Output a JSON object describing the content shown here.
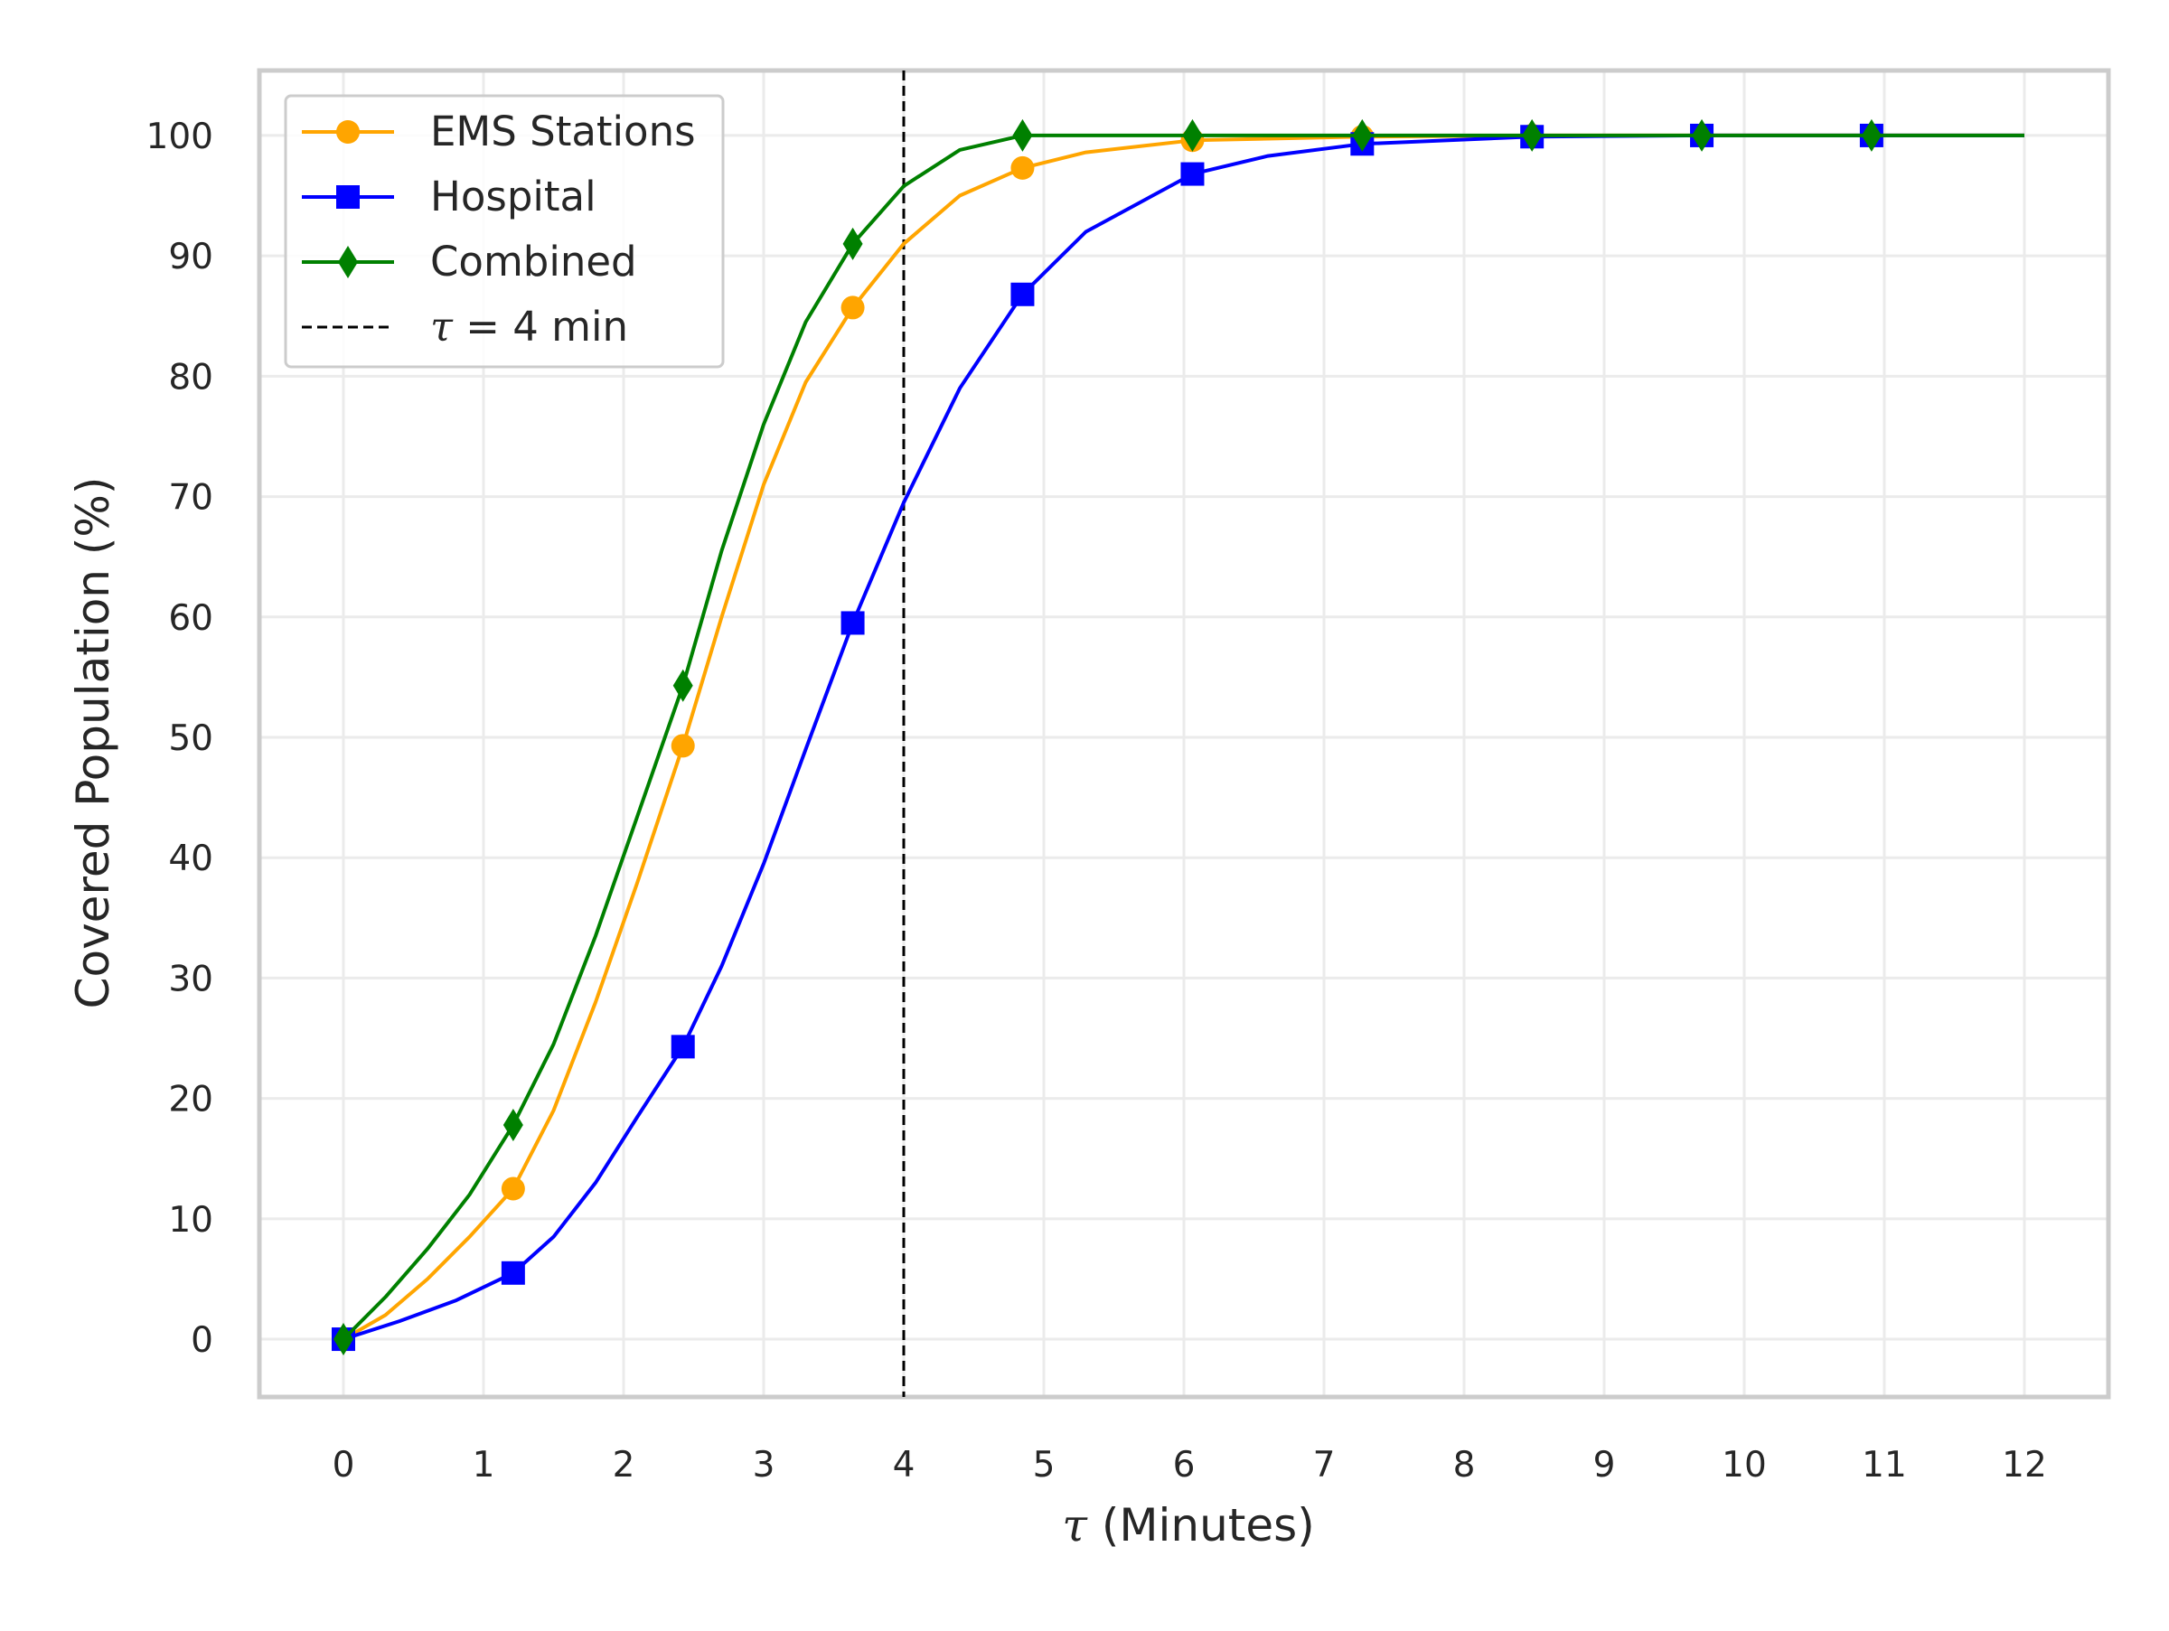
{
  "chart_data": {
    "type": "line",
    "xlabel_symbol": "τ",
    "xlabel_unit": " (Minutes)",
    "ylabel": "Covered Population (%)",
    "xlim": [
      -0.6,
      12.6
    ],
    "ylim": [
      -4.8,
      105.4
    ],
    "xticks": [
      0,
      1,
      2,
      3,
      4,
      5,
      6,
      7,
      8,
      9,
      10,
      11,
      12
    ],
    "yticks": [
      0,
      10,
      20,
      30,
      40,
      50,
      60,
      70,
      80,
      90,
      100
    ],
    "grid": true,
    "legend_position": "top-left",
    "reference_line": {
      "x": 4,
      "style": "dashed",
      "color": "#000000",
      "label_symbol": "τ",
      "label_rest": " = 4 min"
    },
    "marker_x": [
      0,
      1.212,
      2.424,
      3.636,
      4.848,
      6.061,
      7.273,
      8.485,
      9.697,
      10.909
    ],
    "series": [
      {
        "name": "EMS Stations",
        "color": "#FFA500",
        "marker": "circle",
        "x": [
          0,
          0.3,
          0.6,
          0.9,
          1.212,
          1.5,
          1.8,
          2.1,
          2.424,
          2.7,
          3.0,
          3.3,
          3.636,
          4.0,
          4.4,
          4.848,
          5.3,
          6.061,
          7.273,
          8.485,
          9.697,
          10.909,
          12
        ],
        "y": [
          0,
          2.0,
          5.0,
          8.5,
          12.5,
          19.0,
          28.0,
          38.0,
          49.3,
          60.0,
          71.0,
          79.5,
          85.7,
          91.0,
          95.0,
          97.3,
          98.6,
          99.6,
          99.9,
          100,
          100,
          100,
          100
        ],
        "markers": [
          0,
          12.5,
          49.3,
          85.7,
          97.3,
          99.6,
          99.9,
          100,
          100,
          100
        ]
      },
      {
        "name": "Hospital",
        "color": "#0000FF",
        "marker": "square",
        "x": [
          0,
          0.4,
          0.8,
          1.212,
          1.5,
          1.8,
          2.1,
          2.424,
          2.7,
          3.0,
          3.3,
          3.636,
          4.0,
          4.4,
          4.848,
          5.3,
          6.061,
          6.6,
          7.273,
          8.485,
          9.697,
          10.909,
          12
        ],
        "y": [
          0,
          1.5,
          3.2,
          5.5,
          8.5,
          13.0,
          18.5,
          24.3,
          31.0,
          39.5,
          49.0,
          59.5,
          69.5,
          79.0,
          86.8,
          92.0,
          96.8,
          98.3,
          99.3,
          99.9,
          100,
          100,
          100
        ],
        "markers": [
          0,
          5.5,
          24.3,
          59.5,
          86.8,
          96.8,
          99.3,
          99.9,
          100,
          100
        ]
      },
      {
        "name": "Combined",
        "color": "#008000",
        "marker": "diamond",
        "x": [
          0,
          0.3,
          0.6,
          0.9,
          1.212,
          1.5,
          1.8,
          2.1,
          2.424,
          2.7,
          3.0,
          3.3,
          3.636,
          4.0,
          4.4,
          4.848,
          5.3,
          6.061,
          7.273,
          8.485,
          9.697,
          10.909,
          12
        ],
        "y": [
          0,
          3.5,
          7.5,
          12.0,
          17.8,
          24.5,
          33.5,
          43.5,
          54.3,
          65.5,
          76.0,
          84.5,
          91.0,
          95.8,
          98.8,
          100,
          100,
          100,
          100,
          100,
          100,
          100,
          100
        ],
        "markers": [
          0,
          17.8,
          54.3,
          91.0,
          100,
          100,
          100,
          100,
          100,
          100
        ]
      }
    ]
  }
}
